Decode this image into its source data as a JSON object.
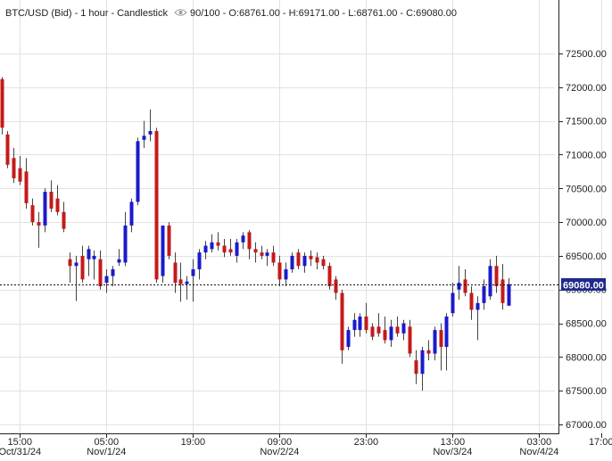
{
  "header": {
    "instrument": "BTC/USD (Bid)",
    "separator1": "-",
    "interval": "1 hour",
    "separator2": "-",
    "chart_style": "Candlestick",
    "zoom": "90/100",
    "ohlc_text": "- O:68761.00 - H:69171.00 - L:68761.00 - C:69080.00"
  },
  "current_price_label": "69080.00",
  "colors": {
    "up": "#1a1acc",
    "down": "#c41a1a",
    "grid": "#e2e2e2",
    "axis": "#222222",
    "price_badge_bg": "#1f2a8a",
    "price_badge_text": "#ffffff"
  },
  "icons": {
    "visibility": "eye-icon"
  },
  "chart_data": {
    "type": "candlestick",
    "title": "BTC/USD (Bid) - 1 hour - Candlestick",
    "y_axis_side": "right",
    "ylim": [
      66800,
      72700
    ],
    "y_ticks": [
      67000,
      67500,
      68000,
      68500,
      69000,
      69500,
      70000,
      70500,
      71000,
      71500,
      72000,
      72500
    ],
    "y_tick_labels": [
      "67000.00",
      "67500.00",
      "68000.00",
      "68500.00",
      "69000.00",
      "69500.00",
      "70000.00",
      "70500.00",
      "71000.00",
      "71500.00",
      "72000.00",
      "72500.00"
    ],
    "x_ticks": [
      {
        "index": 3,
        "time": "15:00",
        "date": "Oct/31/24"
      },
      {
        "index": 17,
        "time": "05:00",
        "date": "Nov/1/24"
      },
      {
        "index": 31,
        "time": "19:00",
        "date": ""
      },
      {
        "index": 45,
        "time": "09:00",
        "date": "Nov/2/24"
      },
      {
        "index": 59,
        "time": "23:00",
        "date": ""
      },
      {
        "index": 73,
        "time": "13:00",
        "date": "Nov/3/24"
      },
      {
        "index": 87,
        "time": "03:00",
        "date": "Nov/4/24"
      },
      {
        "index": 97,
        "time": "17:00",
        "date": ""
      }
    ],
    "current_price": 69080,
    "grid": true,
    "candles": [
      {
        "o": 72120,
        "h": 72150,
        "l": 71300,
        "c": 71400
      },
      {
        "o": 71300,
        "h": 71350,
        "l": 70800,
        "c": 70850
      },
      {
        "o": 70950,
        "h": 71100,
        "l": 70580,
        "c": 70650
      },
      {
        "o": 70800,
        "h": 70980,
        "l": 70550,
        "c": 70600
      },
      {
        "o": 70750,
        "h": 70950,
        "l": 70200,
        "c": 70280
      },
      {
        "o": 70250,
        "h": 70350,
        "l": 69950,
        "c": 70000
      },
      {
        "o": 70000,
        "h": 70150,
        "l": 69620,
        "c": 69950
      },
      {
        "o": 69950,
        "h": 70500,
        "l": 69850,
        "c": 70450
      },
      {
        "o": 70450,
        "h": 70620,
        "l": 70150,
        "c": 70200
      },
      {
        "o": 70350,
        "h": 70550,
        "l": 70100,
        "c": 70150
      },
      {
        "o": 70150,
        "h": 70300,
        "l": 69850,
        "c": 69900
      },
      {
        "o": 69450,
        "h": 69550,
        "l": 69100,
        "c": 69350
      },
      {
        "o": 69350,
        "h": 69500,
        "l": 68830,
        "c": 69400
      },
      {
        "o": 69500,
        "h": 69650,
        "l": 69100,
        "c": 69150
      },
      {
        "o": 69450,
        "h": 69650,
        "l": 69200,
        "c": 69600
      },
      {
        "o": 69450,
        "h": 69580,
        "l": 69150,
        "c": 69500
      },
      {
        "o": 69450,
        "h": 69580,
        "l": 69000,
        "c": 69050
      },
      {
        "o": 69100,
        "h": 69300,
        "l": 68950,
        "c": 69200
      },
      {
        "o": 69200,
        "h": 69350,
        "l": 69050,
        "c": 69300
      },
      {
        "o": 69400,
        "h": 69600,
        "l": 69350,
        "c": 69450
      },
      {
        "o": 69400,
        "h": 70150,
        "l": 69350,
        "c": 69950
      },
      {
        "o": 69950,
        "h": 70350,
        "l": 69850,
        "c": 70300
      },
      {
        "o": 70300,
        "h": 71250,
        "l": 70250,
        "c": 71200
      },
      {
        "o": 71220,
        "h": 71500,
        "l": 71100,
        "c": 71280
      },
      {
        "o": 71300,
        "h": 71670,
        "l": 71200,
        "c": 71350
      },
      {
        "o": 71350,
        "h": 71400,
        "l": 69100,
        "c": 69150
      },
      {
        "o": 69200,
        "h": 69900,
        "l": 69100,
        "c": 69950
      },
      {
        "o": 69950,
        "h": 70000,
        "l": 69450,
        "c": 69500
      },
      {
        "o": 69400,
        "h": 69550,
        "l": 68950,
        "c": 69100
      },
      {
        "o": 69150,
        "h": 69400,
        "l": 68820,
        "c": 69080
      },
      {
        "o": 69080,
        "h": 69200,
        "l": 68850,
        "c": 69120
      },
      {
        "o": 69200,
        "h": 69450,
        "l": 68820,
        "c": 69300
      },
      {
        "o": 69300,
        "h": 69600,
        "l": 69150,
        "c": 69550
      },
      {
        "o": 69550,
        "h": 69720,
        "l": 69450,
        "c": 69650
      },
      {
        "o": 69600,
        "h": 69820,
        "l": 69550,
        "c": 69700
      },
      {
        "o": 69700,
        "h": 69850,
        "l": 69580,
        "c": 69650
      },
      {
        "o": 69650,
        "h": 69750,
        "l": 69480,
        "c": 69550
      },
      {
        "o": 69600,
        "h": 69750,
        "l": 69500,
        "c": 69550
      },
      {
        "o": 69500,
        "h": 69750,
        "l": 69400,
        "c": 69700
      },
      {
        "o": 69700,
        "h": 69850,
        "l": 69600,
        "c": 69800
      },
      {
        "o": 69850,
        "h": 69880,
        "l": 69450,
        "c": 69600
      },
      {
        "o": 69600,
        "h": 69700,
        "l": 69400,
        "c": 69550
      },
      {
        "o": 69550,
        "h": 69650,
        "l": 69450,
        "c": 69500
      },
      {
        "o": 69500,
        "h": 69600,
        "l": 69350,
        "c": 69550
      },
      {
        "o": 69550,
        "h": 69650,
        "l": 69350,
        "c": 69400
      },
      {
        "o": 69400,
        "h": 69500,
        "l": 69050,
        "c": 69150
      },
      {
        "o": 69150,
        "h": 69400,
        "l": 69050,
        "c": 69300
      },
      {
        "o": 69300,
        "h": 69550,
        "l": 69250,
        "c": 69500
      },
      {
        "o": 69550,
        "h": 69600,
        "l": 69300,
        "c": 69350
      },
      {
        "o": 69350,
        "h": 69550,
        "l": 69250,
        "c": 69500
      },
      {
        "o": 69500,
        "h": 69580,
        "l": 69350,
        "c": 69450
      },
      {
        "o": 69480,
        "h": 69550,
        "l": 69300,
        "c": 69400
      },
      {
        "o": 69450,
        "h": 69500,
        "l": 69300,
        "c": 69350
      },
      {
        "o": 69350,
        "h": 69400,
        "l": 69000,
        "c": 69050
      },
      {
        "o": 69150,
        "h": 69200,
        "l": 68850,
        "c": 68950
      },
      {
        "o": 68950,
        "h": 69000,
        "l": 67900,
        "c": 68100
      },
      {
        "o": 68150,
        "h": 68450,
        "l": 68100,
        "c": 68400
      },
      {
        "o": 68400,
        "h": 68650,
        "l": 68300,
        "c": 68550
      },
      {
        "o": 68400,
        "h": 68650,
        "l": 68300,
        "c": 68600
      },
      {
        "o": 68600,
        "h": 68800,
        "l": 68350,
        "c": 68400
      },
      {
        "o": 68450,
        "h": 68500,
        "l": 68250,
        "c": 68300
      },
      {
        "o": 68450,
        "h": 68650,
        "l": 68300,
        "c": 68350
      },
      {
        "o": 68400,
        "h": 68600,
        "l": 68200,
        "c": 68250
      },
      {
        "o": 68250,
        "h": 68550,
        "l": 68150,
        "c": 68450
      },
      {
        "o": 68450,
        "h": 68600,
        "l": 68300,
        "c": 68350
      },
      {
        "o": 68350,
        "h": 68550,
        "l": 68250,
        "c": 68500
      },
      {
        "o": 68450,
        "h": 68550,
        "l": 68000,
        "c": 68050
      },
      {
        "o": 67950,
        "h": 68100,
        "l": 67600,
        "c": 67750
      },
      {
        "o": 67750,
        "h": 68150,
        "l": 67500,
        "c": 68100
      },
      {
        "o": 68100,
        "h": 68250,
        "l": 67950,
        "c": 68050
      },
      {
        "o": 68050,
        "h": 68450,
        "l": 67950,
        "c": 68400
      },
      {
        "o": 68400,
        "h": 68500,
        "l": 67800,
        "c": 68150
      },
      {
        "o": 68150,
        "h": 68650,
        "l": 67800,
        "c": 68600
      },
      {
        "o": 68650,
        "h": 69100,
        "l": 68600,
        "c": 68950
      },
      {
        "o": 69000,
        "h": 69350,
        "l": 68850,
        "c": 69100
      },
      {
        "o": 69150,
        "h": 69300,
        "l": 68900,
        "c": 68950
      },
      {
        "o": 68950,
        "h": 69050,
        "l": 68550,
        "c": 68700
      },
      {
        "o": 68700,
        "h": 68900,
        "l": 68250,
        "c": 68800
      },
      {
        "o": 68800,
        "h": 69150,
        "l": 68700,
        "c": 69050
      },
      {
        "o": 68900,
        "h": 69450,
        "l": 68850,
        "c": 69350
      },
      {
        "o": 69350,
        "h": 69500,
        "l": 68950,
        "c": 69050
      },
      {
        "o": 69150,
        "h": 69380,
        "l": 68700,
        "c": 68800
      },
      {
        "o": 68761,
        "h": 69171,
        "l": 68761,
        "c": 69080
      }
    ]
  }
}
